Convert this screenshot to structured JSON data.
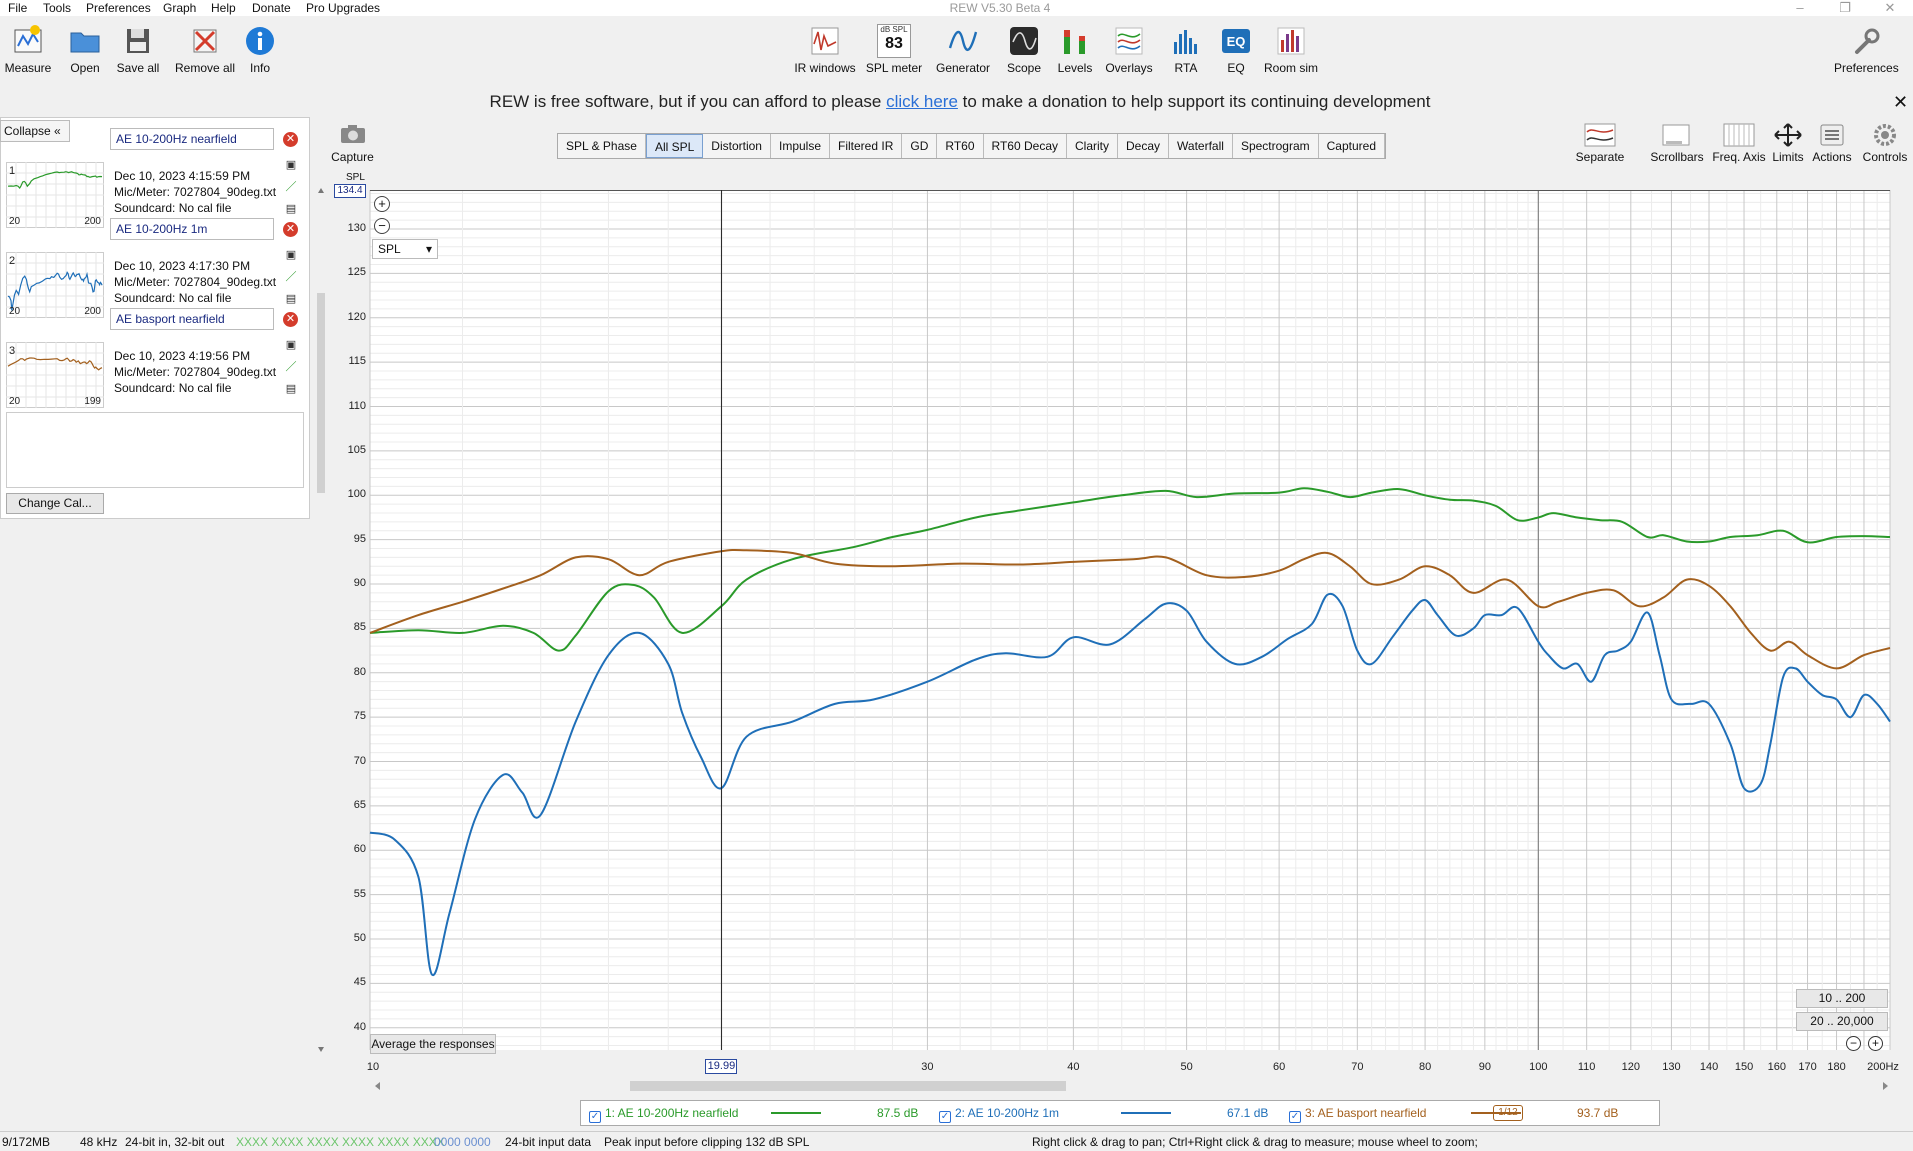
{
  "menu": [
    "File",
    "Tools",
    "Preferences",
    "Graph",
    "Help",
    "Donate",
    "Pro Upgrades"
  ],
  "window_title": "REW V5.30 Beta 4",
  "toolbar_left": [
    {
      "label": "Measure",
      "icon": "measure-icon"
    },
    {
      "label": "Open",
      "icon": "folder-icon"
    },
    {
      "label": "Save all",
      "icon": "save-icon"
    },
    {
      "label": "Remove all",
      "icon": "remove-icon"
    },
    {
      "label": "Info",
      "icon": "info-icon"
    }
  ],
  "toolbar_center": [
    {
      "label": "IR windows",
      "icon": "ir-windows-icon"
    },
    {
      "label": "SPL meter",
      "icon": "spl-meter-icon",
      "badge_top": "dB SPL",
      "badge_value": "83"
    },
    {
      "label": "Generator",
      "icon": "generator-icon"
    },
    {
      "label": "Scope",
      "icon": "scope-icon"
    },
    {
      "label": "Levels",
      "icon": "levels-icon"
    },
    {
      "label": "Overlays",
      "icon": "overlays-icon"
    },
    {
      "label": "RTA",
      "icon": "rta-icon"
    },
    {
      "label": "EQ",
      "icon": "eq-icon"
    },
    {
      "label": "Room sim",
      "icon": "room-sim-icon"
    }
  ],
  "toolbar_right": {
    "label": "Preferences",
    "icon": "wrench-icon"
  },
  "banner": {
    "before": "REW is free software, but if you can afford to please ",
    "link": "click here",
    "after": " to make a donation to help support its continuing development"
  },
  "side": {
    "collapse_label": "Collapse",
    "change_cal_label": "Change Cal...",
    "measurements": [
      {
        "num": "1",
        "name": "AE 10-200Hz nearfield",
        "date": "Dec 10, 2023 4:15:59 PM",
        "mic": "Mic/Meter: 7027804_90deg.txt",
        "soundcard": "Soundcard: No cal file",
        "range_start": "20",
        "range_end": "200",
        "color": "#2a9a2a"
      },
      {
        "num": "2",
        "name": "AE 10-200Hz 1m",
        "date": "Dec 10, 2023 4:17:30 PM",
        "mic": "Mic/Meter: 7027804_90deg.txt",
        "soundcard": "Soundcard: No cal file",
        "range_start": "20",
        "range_end": "200",
        "color": "#1f6fb8"
      },
      {
        "num": "3",
        "name": "AE basport nearfield",
        "date": "Dec 10, 2023 4:19:56 PM",
        "mic": "Mic/Meter: 7027804_90deg.txt",
        "soundcard": "Soundcard: No cal file",
        "range_start": "20",
        "range_end": "199",
        "color": "#a3601e"
      }
    ]
  },
  "capture_label": "Capture",
  "tabs": [
    "SPL & Phase",
    "All SPL",
    "Distortion",
    "Impulse",
    "Filtered IR",
    "GD",
    "RT60",
    "RT60 Decay",
    "Clarity",
    "Decay",
    "Waterfall",
    "Spectrogram",
    "Captured"
  ],
  "active_tab": "All SPL",
  "right_tools": [
    {
      "label": "Separate",
      "icon": "separate-icon"
    },
    {
      "label": "Scrollbars",
      "icon": "scrollbars-icon"
    },
    {
      "label": "Freq. Axis",
      "icon": "freq-axis-icon"
    },
    {
      "label": "Limits",
      "icon": "limits-icon"
    },
    {
      "label": "Actions",
      "icon": "actions-icon"
    },
    {
      "label": "Controls",
      "icon": "gear-icon"
    }
  ],
  "graph_controls": {
    "unit_select": "SPL",
    "avg_button": "Average the responses",
    "range1": "10 .. 200",
    "range2": "20 .. 20,000"
  },
  "chart_data": {
    "type": "line",
    "ylabel": "SPL",
    "xscale": "log",
    "xlim": [
      10,
      200
    ],
    "ylim": [
      37.5,
      134.4
    ],
    "y_top_readout": "134.4",
    "cursor_x": 19.99,
    "cursor_label": "19.99",
    "xticks": [
      10,
      30,
      40,
      50,
      60,
      70,
      80,
      90,
      100,
      110,
      120,
      130,
      140,
      150,
      160,
      170,
      180,
      200
    ],
    "xtick_labels": [
      "10",
      "30",
      "40",
      "50",
      "60",
      "70",
      "80",
      "90",
      "100",
      "110",
      "120",
      "130",
      "140",
      "150",
      "160",
      "170",
      "180",
      "200Hz"
    ],
    "yticks": [
      40,
      45,
      50,
      55,
      60,
      65,
      70,
      75,
      80,
      85,
      90,
      95,
      100,
      105,
      110,
      115,
      120,
      125,
      130
    ],
    "grid": true,
    "series": [
      {
        "name": "1: AE 10-200Hz nearfield",
        "color": "#2a9a2a",
        "value_label": "87.5 dB",
        "x": [
          10,
          11,
          12,
          13,
          13.8,
          14.5,
          15,
          16,
          16.8,
          17.5,
          18.5,
          19.99,
          21,
          23,
          26,
          28,
          30,
          33,
          36,
          40,
          44,
          48,
          51,
          55,
          60,
          63,
          66,
          69,
          72,
          76,
          80,
          84,
          88,
          92,
          96,
          100,
          103,
          108,
          113,
          118,
          124,
          128,
          134,
          140,
          146,
          154,
          162,
          170,
          180,
          190,
          200
        ],
        "y": [
          84.5,
          84.8,
          84.5,
          85.3,
          84.5,
          82.5,
          84.2,
          89.2,
          89.9,
          88.5,
          84.5,
          87.5,
          90.5,
          92.8,
          94.2,
          95.3,
          96.1,
          97.5,
          98.3,
          99.2,
          100.0,
          100.5,
          99.8,
          100.2,
          100.3,
          100.8,
          100.4,
          99.8,
          100.3,
          100.7,
          100.0,
          99.5,
          99.4,
          98.8,
          97.2,
          97.5,
          98.0,
          97.5,
          97.2,
          97.0,
          95.3,
          95.5,
          94.8,
          94.8,
          95.3,
          95.5,
          96.0,
          94.7,
          95.3,
          95.4,
          95.3
        ]
      },
      {
        "name": "2: AE 10-200Hz 1m",
        "color": "#1f6fb8",
        "value_label": "67.1 dB",
        "x": [
          10,
          10.5,
          11,
          11.3,
          11.7,
          12.3,
          13,
          13.5,
          14,
          15,
          16,
          17,
          18,
          18.5,
          19.2,
          19.99,
          21,
          23,
          25,
          27,
          30,
          33,
          35,
          38,
          40,
          43,
          46,
          48,
          50,
          52,
          55,
          58,
          61,
          64,
          66,
          68,
          70,
          72,
          75,
          78,
          80,
          82,
          85,
          88,
          90,
          93,
          96,
          100,
          102,
          105,
          108,
          111,
          114,
          117,
          120,
          124,
          127,
          130,
          135,
          140,
          146,
          150,
          155,
          158,
          162,
          166,
          170,
          175,
          180,
          185,
          190,
          195,
          200
        ],
        "y": [
          62.0,
          61.2,
          57.0,
          46.0,
          53.0,
          63.5,
          68.5,
          66.5,
          64.0,
          74.5,
          82.0,
          84.5,
          81.0,
          75.5,
          70.5,
          67.0,
          72.8,
          74.5,
          76.5,
          77.0,
          79.0,
          81.5,
          82.2,
          81.8,
          84.0,
          83.2,
          86.0,
          87.8,
          87.0,
          83.5,
          81.0,
          81.8,
          83.8,
          85.5,
          88.8,
          87.5,
          82.5,
          81.0,
          84.0,
          87.0,
          88.2,
          86.5,
          84.2,
          85.0,
          86.5,
          86.5,
          87.3,
          83.5,
          82.0,
          80.5,
          81.0,
          79.0,
          82.0,
          82.5,
          83.5,
          86.8,
          82.0,
          77.0,
          76.5,
          76.5,
          72.0,
          67.0,
          67.5,
          72.0,
          79.5,
          80.5,
          79.0,
          77.5,
          77.0,
          75.0,
          77.5,
          76.5,
          74.5
        ]
      },
      {
        "name": "3: AE basport nearfield",
        "color": "#a3601e",
        "value_label": "93.7 dB",
        "x": [
          10,
          11,
          12,
          13,
          14,
          15,
          16,
          17,
          18,
          19.99,
          21,
          23,
          25,
          28,
          32,
          36,
          40,
          45,
          48,
          52,
          56,
          60,
          63,
          66,
          69,
          72,
          76,
          80,
          84,
          88,
          94,
          100,
          104,
          110,
          116,
          122,
          128,
          134,
          140,
          146,
          152,
          158,
          164,
          170,
          180,
          190,
          200
        ],
        "y": [
          84.5,
          86.5,
          88.0,
          89.5,
          91.0,
          93.0,
          92.8,
          91.0,
          92.5,
          93.7,
          93.8,
          93.5,
          92.3,
          92.0,
          92.3,
          92.2,
          92.5,
          92.8,
          93.0,
          91.0,
          90.8,
          91.5,
          92.8,
          93.5,
          92.0,
          90.0,
          90.5,
          92.0,
          91.0,
          89.0,
          90.5,
          87.5,
          88.0,
          89.0,
          89.3,
          87.5,
          88.5,
          90.5,
          89.8,
          87.5,
          84.5,
          82.5,
          83.5,
          82.0,
          80.5,
          82.0,
          82.8
        ]
      }
    ]
  },
  "legend": {
    "smoothing": "1/12"
  },
  "status": {
    "mem": "9/172MB",
    "rate": "48 kHz",
    "bits": "24-bit in, 32-bit out",
    "levels": "XXXX XXXX   XXXX XXXX   XXXX XXXX",
    "zeros": "0000 0000",
    "input": "24-bit input data",
    "peak": "Peak input before clipping 132 dB SPL",
    "hint": "Right click & drag to pan; Ctrl+Right click & drag to measure; mouse wheel to zoom;"
  }
}
